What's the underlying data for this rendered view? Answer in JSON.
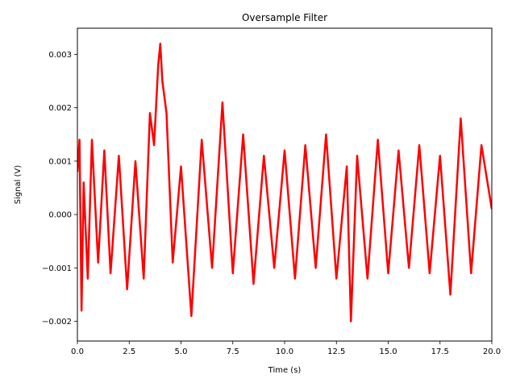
{
  "chart_data": {
    "type": "line",
    "title": "Oversample Filter",
    "xlabel": "Time (s)",
    "ylabel": "Signal (V)",
    "xlim": [
      0,
      20
    ],
    "ylim": [
      -0.00237,
      0.00349
    ],
    "xticks": [
      0,
      2.5,
      5,
      7.5,
      10,
      12.5,
      15,
      17.5,
      20
    ],
    "xtick_labels": [
      "0.0",
      "2.5",
      "5.0",
      "7.5",
      "10.0",
      "12.5",
      "15.0",
      "17.5",
      "20.0"
    ],
    "yticks": [
      -0.002,
      -0.001,
      0.0,
      0.001,
      0.002,
      0.003
    ],
    "ytick_labels": [
      "−0.002",
      "−0.001",
      "0.000",
      "0.001",
      "0.002",
      "0.003"
    ],
    "grid": false,
    "series": [
      {
        "color": "#ff0000",
        "x": [
          0,
          0.1,
          0.2,
          0.3,
          0.5,
          0.7,
          1.0,
          1.3,
          1.6,
          2.0,
          2.4,
          2.8,
          3.2,
          3.5,
          3.7,
          3.9,
          4.0,
          4.1,
          4.3,
          4.6,
          5.0,
          5.5,
          6.0,
          6.5,
          7.0,
          7.5,
          8.0,
          8.5,
          9.0,
          9.5,
          10.0,
          10.5,
          11.0,
          11.5,
          12.0,
          12.5,
          13.0,
          13.2,
          13.5,
          14.0,
          14.5,
          15.0,
          15.5,
          16.0,
          16.5,
          17.0,
          17.5,
          18.0,
          18.5,
          19.0,
          19.5,
          20.0
        ],
        "y": [
          0.0008,
          0.0014,
          -0.0018,
          0.0006,
          -0.0012,
          0.0014,
          -0.0009,
          0.0012,
          -0.0011,
          0.0011,
          -0.0014,
          0.001,
          -0.0012,
          0.0019,
          0.0013,
          0.0028,
          0.0032,
          0.0025,
          0.0019,
          -0.0009,
          0.0009,
          -0.0019,
          0.0014,
          -0.001,
          0.0021,
          -0.0011,
          0.0015,
          -0.0013,
          0.0011,
          -0.001,
          0.0012,
          -0.0012,
          0.0013,
          -0.001,
          0.0015,
          -0.0012,
          0.0009,
          -0.002,
          0.0011,
          -0.0012,
          0.0014,
          -0.0011,
          0.0012,
          -0.001,
          0.0013,
          -0.0011,
          0.0011,
          -0.0015,
          0.0018,
          -0.0011,
          0.0013,
          0.0001
        ]
      }
    ]
  }
}
